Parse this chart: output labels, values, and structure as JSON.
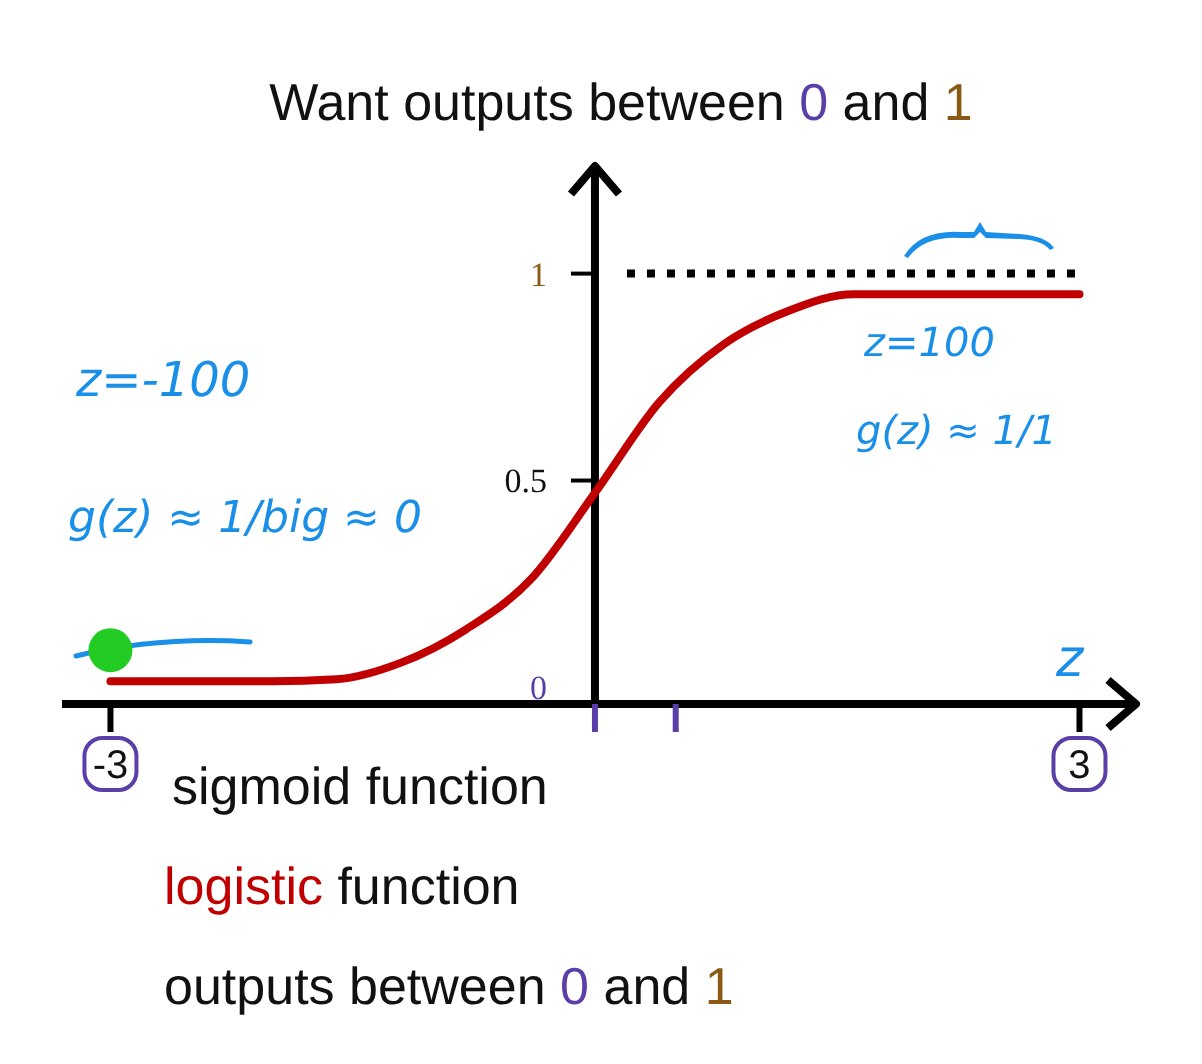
{
  "chart_data": {
    "type": "line",
    "title": "Want outputs between 0 and 1",
    "xlabel": "z",
    "x": [
      -3,
      -2.4,
      -2,
      -1.6,
      -1.2,
      -0.8,
      -0.4,
      0,
      0.4,
      0.8,
      1.2,
      1.6,
      2,
      2.5,
      3
    ],
    "series": [
      {
        "color": "#c00000",
        "values": [
          0.015,
          0.015,
          0.015,
          0.02,
          0.06,
          0.14,
          0.26,
          0.47,
          0.69,
          0.83,
          0.91,
          0.95,
          0.95,
          0.95,
          0.95
        ]
      },
      {
        "type": "scatter",
        "color": "#22cc22",
        "x": [
          -3
        ],
        "values": [
          0.09
        ]
      }
    ],
    "xlim": [
      -3.3,
      3.35
    ],
    "ylim": [
      -0.04,
      1.26
    ],
    "xticks": [
      {
        "value": -3,
        "label": "-3"
      },
      {
        "value": 0,
        "label": null
      },
      {
        "value": 0.5,
        "label": null
      },
      {
        "value": 3,
        "label": "3"
      }
    ],
    "yticks": [
      0,
      0.5,
      1
    ],
    "ref_lines": [
      {
        "axis": "y",
        "value": 1,
        "color": "#000000",
        "line_style": "dotted"
      }
    ],
    "annotations": [
      "z=-100",
      "g(z) ≈ 1/big ≈ 0",
      "z=100",
      "g(z) ≈ 1/1",
      "sigmoid function",
      "logistic function",
      "outputs between 0 and 1"
    ]
  }
}
